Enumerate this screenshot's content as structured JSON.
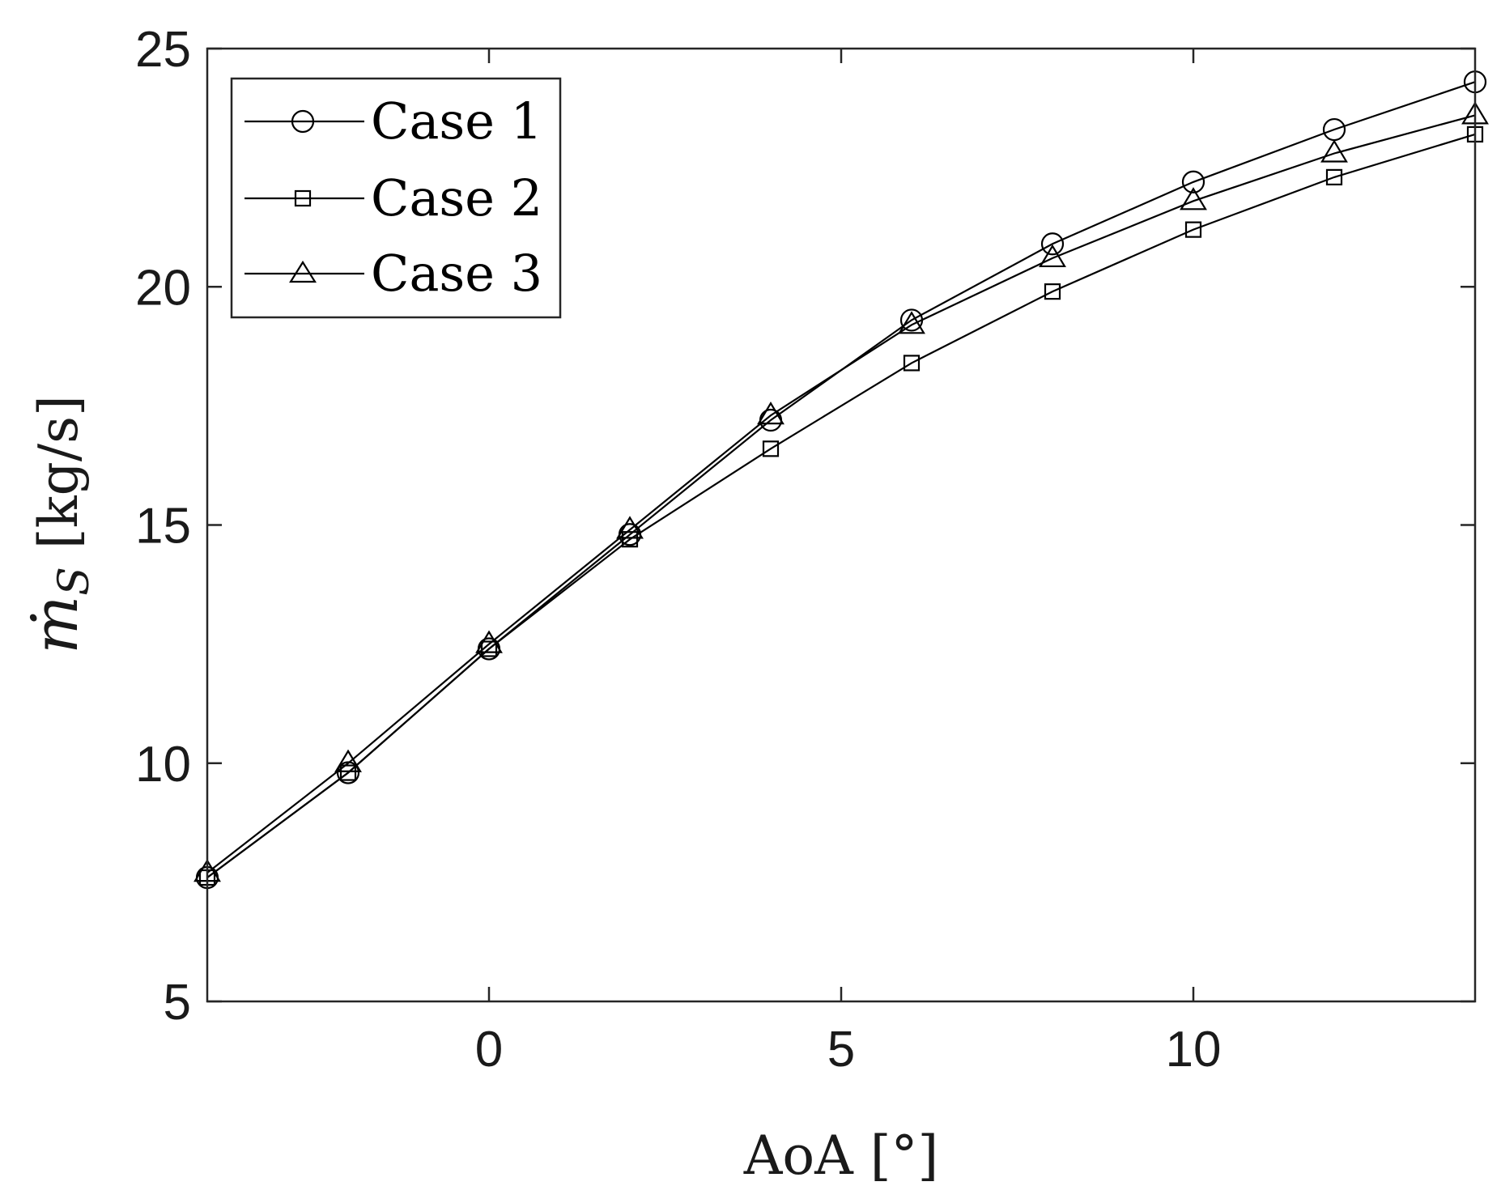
{
  "chart_data": {
    "type": "line",
    "xlabel": "AoA [°]",
    "ylabel_main": "ṁ",
    "ylabel_sub": "S",
    "ylabel_unit": "[kg/s]",
    "xlim": [
      -4,
      14
    ],
    "ylim": [
      5,
      25
    ],
    "xticks": [
      0,
      5,
      10
    ],
    "yticks": [
      5,
      10,
      15,
      20,
      25
    ],
    "grid": false,
    "legend_position": "top-left",
    "x": [
      -4,
      -2,
      0,
      2,
      4,
      6,
      8,
      10,
      12,
      14
    ],
    "series": [
      {
        "name": "Case 1",
        "marker": "circle",
        "values": [
          7.6,
          9.8,
          12.4,
          14.8,
          17.2,
          19.3,
          20.9,
          22.2,
          23.3,
          24.3
        ]
      },
      {
        "name": "Case 2",
        "marker": "square",
        "values": [
          7.6,
          9.8,
          12.4,
          14.7,
          16.6,
          18.4,
          19.9,
          21.2,
          22.3,
          23.2
        ]
      },
      {
        "name": "Case 3",
        "marker": "triangle",
        "values": [
          7.7,
          10.0,
          12.5,
          14.9,
          17.3,
          19.2,
          20.6,
          21.8,
          22.8,
          23.6
        ]
      }
    ],
    "colors": {
      "line": "#000000",
      "axis": "#262626"
    }
  }
}
